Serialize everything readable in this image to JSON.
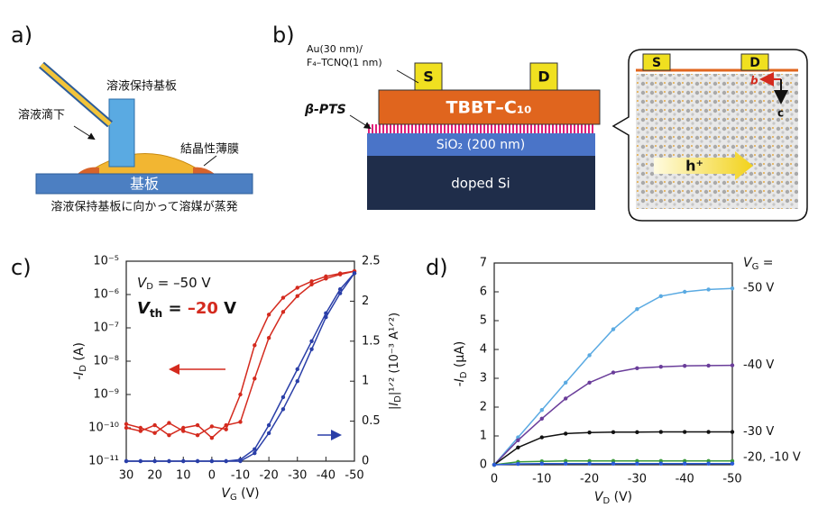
{
  "panel_labels": [
    "a)",
    "b)",
    "c)",
    "d)"
  ],
  "panel_a": {
    "dropping": "溶液滴下",
    "holder": "溶液保持基板",
    "film": "結晶性薄膜",
    "substrate": "基板",
    "caption": "溶液保持基板に向かって溶媒が蒸発"
  },
  "panel_b": {
    "electrode_note": [
      "Au(30 nm)/",
      "F₄–TCNQ(1 nm)"
    ],
    "source": "S",
    "drain": "D",
    "semiconductor": "TBBT–C₁₀",
    "sam": "β-PTS",
    "dielectric": "SiO₂ (200 nm)",
    "substrate": "doped Si",
    "inset": {
      "source": "S",
      "drain": "D",
      "axis_b": "b",
      "axis_c": "c",
      "carrier": "h⁺"
    }
  },
  "chart_data": [
    {
      "type": "line",
      "ylog": true,
      "xlim": [
        30,
        -50
      ],
      "xticks": [
        30,
        20,
        10,
        0,
        -10,
        -20,
        -30,
        -40,
        -50
      ],
      "xlabel": [
        "V",
        "G",
        " (V)"
      ],
      "ylim": [
        1e-11,
        1e-05
      ],
      "yticks": [
        {
          "value": 1e-11,
          "label": "10⁻¹¹"
        },
        {
          "value": 1e-10,
          "label": "10⁻¹⁰"
        },
        {
          "value": 1e-09,
          "label": "10⁻⁹"
        },
        {
          "value": 1e-08,
          "label": "10⁻⁸"
        },
        {
          "value": 1e-07,
          "label": "10⁻⁷"
        },
        {
          "value": 1e-06,
          "label": "10⁻⁶"
        },
        {
          "value": 1e-05,
          "label": "10⁻⁵"
        }
      ],
      "ylabel": [
        "-I",
        "D",
        " (A)"
      ],
      "y2lim": [
        0,
        2.5
      ],
      "y2ticks": [
        0,
        0.5,
        1,
        1.5,
        2,
        2.5
      ],
      "y2label": [
        "|I",
        "D",
        "|¹ᐟ² (10⁻³ A¹ᐟ²)"
      ],
      "x": [
        30,
        25,
        20,
        15,
        10,
        5,
        0,
        -5,
        -10,
        -15,
        -20,
        -25,
        -30,
        -35,
        -40,
        -45,
        -50
      ],
      "series": [
        {
          "color": "#d42a1e",
          "values": [
            1e-10,
            8e-11,
            1.2e-10,
            6e-11,
            1e-10,
            1.2e-10,
            5e-11,
            1.2e-10,
            1.5e-10,
            3e-09,
            5e-08,
            3e-07,
            9e-07,
            2e-06,
            3e-06,
            4e-06,
            5e-06
          ]
        },
        {
          "color": "#d42a1e",
          "values": [
            1.3e-10,
            1e-10,
            7e-11,
            1.4e-10,
            8e-11,
            6e-11,
            1.1e-10,
            9e-11,
            1e-09,
            3e-08,
            2.5e-07,
            8e-07,
            1.6e-06,
            2.5e-06,
            3.5e-06,
            4.3e-06,
            5e-06
          ]
        },
        {
          "color": "#2a3fa8",
          "axis": "y2",
          "values": [
            0,
            0,
            0,
            0,
            0,
            0,
            0,
            0,
            0,
            0.1,
            0.35,
            0.65,
            1.0,
            1.4,
            1.8,
            2.1,
            2.35
          ]
        },
        {
          "color": "#2a3fa8",
          "axis": "y2",
          "values": [
            0,
            0,
            0,
            0,
            0,
            0,
            0,
            0,
            0.02,
            0.15,
            0.45,
            0.8,
            1.15,
            1.5,
            1.85,
            2.15,
            2.35
          ]
        }
      ],
      "annotations": {
        "vd": [
          "V",
          "D",
          " = –50 V"
        ],
        "vth": {
          "symbol": [
            "V",
            "th",
            " = "
          ],
          "value": "–20",
          "unit": " V"
        }
      }
    },
    {
      "type": "line",
      "xlim": [
        0,
        -50
      ],
      "xticks": [
        0,
        -10,
        -20,
        -30,
        -40,
        -50
      ],
      "xlabel": [
        "V",
        "D",
        " (V)"
      ],
      "ylim": [
        0,
        7
      ],
      "yticks": [
        0,
        1,
        2,
        3,
        4,
        5,
        6,
        7
      ],
      "ylabel": [
        "-I",
        "D",
        " (µA)"
      ],
      "legend_title": [
        "V",
        "G",
        " ="
      ],
      "x": [
        0,
        -5,
        -10,
        -15,
        -20,
        -25,
        -30,
        -35,
        -40,
        -45,
        -50
      ],
      "series": [
        {
          "color": "#5aaae2",
          "values": [
            0,
            0.95,
            1.9,
            2.85,
            3.8,
            4.7,
            5.4,
            5.85,
            6.0,
            6.08,
            6.12
          ]
        },
        {
          "color": "#6a3d9a",
          "values": [
            0,
            0.85,
            1.6,
            2.3,
            2.85,
            3.2,
            3.35,
            3.4,
            3.43,
            3.44,
            3.45
          ]
        },
        {
          "color": "#111111",
          "values": [
            0,
            0.6,
            0.95,
            1.08,
            1.12,
            1.13,
            1.13,
            1.14,
            1.14,
            1.14,
            1.14
          ]
        },
        {
          "color": "#3a9a3a",
          "values": [
            0,
            0.1,
            0.12,
            0.13,
            0.13,
            0.13,
            0.13,
            0.13,
            0.13,
            0.13,
            0.13
          ]
        },
        {
          "color": "#2a5bd8",
          "values": [
            0,
            0.03,
            0.04,
            0.04,
            0.04,
            0.04,
            0.04,
            0.04,
            0.04,
            0.04,
            0.04
          ]
        }
      ],
      "end_labels": [
        "-50 V",
        "-40 V",
        "-30 V",
        "-20, -10 V"
      ]
    }
  ]
}
